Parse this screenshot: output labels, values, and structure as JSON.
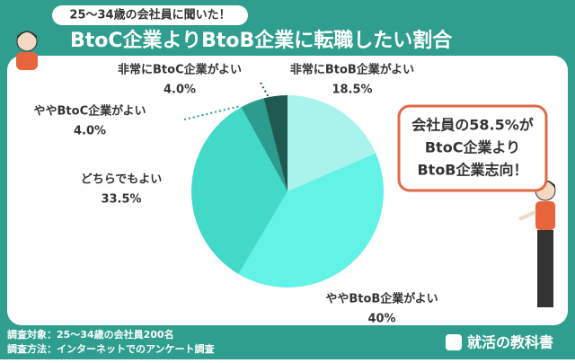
{
  "chart_data": {
    "type": "pie",
    "subtitle": "25〜34歳の会社員に聞いた！",
    "title": "BtoC企業よりBtoB企業に転職したい割合",
    "categories": [
      "非常にBtoB企業がよい",
      "ややBtoB企業がよい",
      "どちらでもよい",
      "ややBtoC企業がよい",
      "非常にBtoC企業がよい"
    ],
    "values": [
      18.5,
      40,
      33.5,
      4.0,
      4.0
    ],
    "value_labels": [
      "18.5%",
      "40%",
      "33.5%",
      "4.0%",
      "4.0%"
    ],
    "colors": [
      "#a9f3ec",
      "#63f2e6",
      "#43d9c8",
      "#2b9c8e",
      "#1f5a52"
    ],
    "callout": [
      "会社員の58.5%が",
      "BtoC企業より",
      "BtoB企業志向！"
    ],
    "footer": [
      "調査対象：25〜34歳の会社員200名",
      "調査方法：インターネットでのアンケート調査"
    ],
    "logo": "就活の教科書"
  }
}
